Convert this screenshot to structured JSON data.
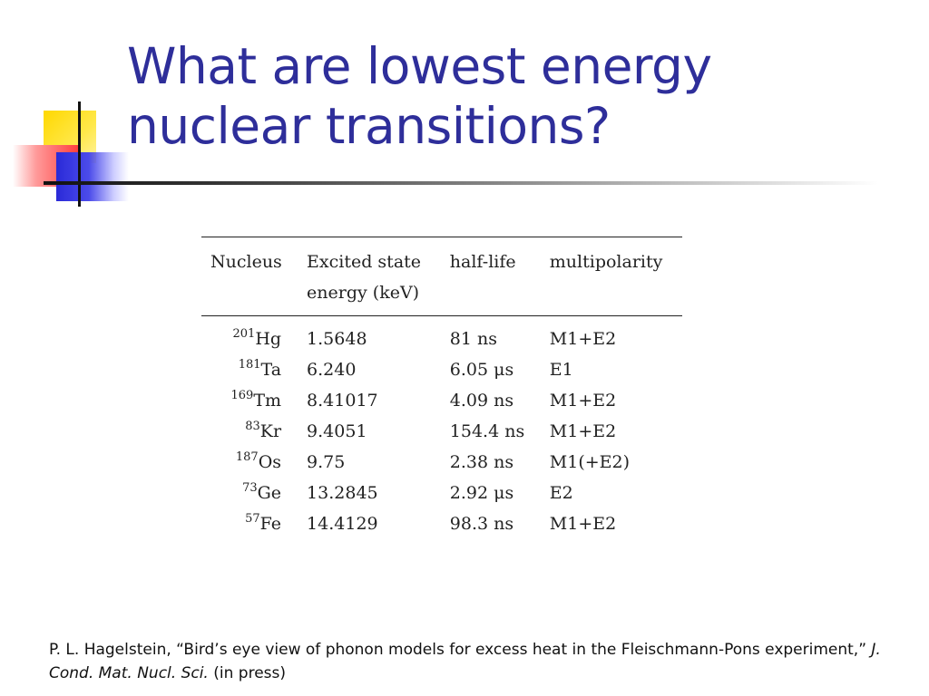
{
  "slide": {
    "title_lines": [
      "What are lowest energy",
      "nuclear transitions?"
    ]
  },
  "table": {
    "headers": {
      "nucleus": "Nucleus",
      "energy_line1": "Excited state",
      "energy_line2": "energy (keV)",
      "half_life": "half-life",
      "multipolarity": "multipolarity"
    },
    "rows": [
      {
        "mass": "201",
        "element": "Hg",
        "energy": "1.5648",
        "half_life": "81 ns",
        "multipolarity": "M1+E2"
      },
      {
        "mass": "181",
        "element": "Ta",
        "energy": "6.240",
        "half_life": "6.05 μs",
        "multipolarity": "E1"
      },
      {
        "mass": "169",
        "element": "Tm",
        "energy": "8.41017",
        "half_life": "4.09 ns",
        "multipolarity": "M1+E2"
      },
      {
        "mass": "83",
        "element": "Kr",
        "energy": "9.4051",
        "half_life": "154.4 ns",
        "multipolarity": "M1+E2"
      },
      {
        "mass": "187",
        "element": "Os",
        "energy": "9.75",
        "half_life": "2.38 ns",
        "multipolarity": "M1(+E2)"
      },
      {
        "mass": "73",
        "element": "Ge",
        "energy": "13.2845",
        "half_life": "2.92 μs",
        "multipolarity": "E2"
      },
      {
        "mass": "57",
        "element": "Fe",
        "energy": "14.4129",
        "half_life": "98.3 ns",
        "multipolarity": "M1+E2"
      }
    ]
  },
  "citation": {
    "lead": "P. L. Hagelstein, “Bird’s eye view of phonon models for excess heat in the Fleischmann-Pons experiment,” ",
    "journal": "J. Cond. Mat. Nucl. Sci.",
    "tail": " (in press)"
  },
  "colors": {
    "title": "#2e2e9a",
    "accent_yellow": "#ffd800",
    "accent_red": "#ff3b3b",
    "accent_blue": "#2a2ad8"
  }
}
